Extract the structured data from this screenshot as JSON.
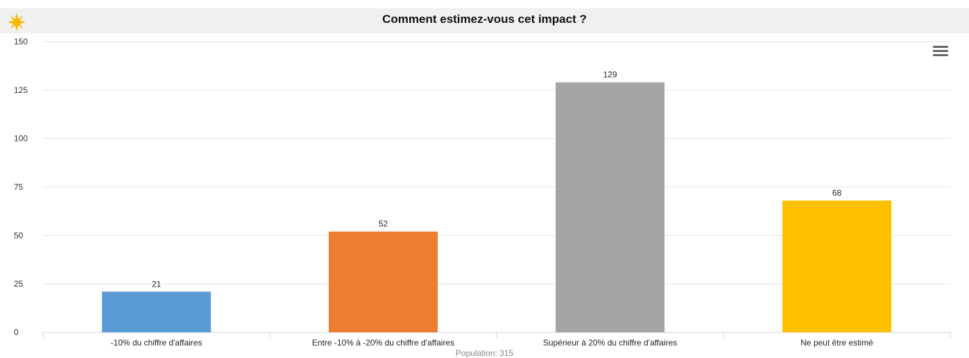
{
  "title": "Comment estimez-vous cet impact ?",
  "footer": "Population: 315",
  "icons": {
    "logo": "sun-logo-icon",
    "menu": "hamburger-menu-icon"
  },
  "chart_data": {
    "type": "bar",
    "title": "Comment estimez-vous cet impact ?",
    "categories": [
      "-10% du chiffre d'affaires",
      "Entre -10% à -20% du chiffre d'affaires",
      "Supérieur à 20% du chiffre d'affaires",
      "Ne peut être estimé"
    ],
    "values": [
      21,
      52,
      129,
      68
    ],
    "colors": [
      "#5b9bd5",
      "#ed7d31",
      "#a5a5a5",
      "#ffc000"
    ],
    "ylim": [
      0,
      150
    ],
    "yticks": [
      0,
      25,
      50,
      75,
      100,
      125,
      150
    ],
    "xlabel": "",
    "ylabel": "",
    "grid": true,
    "data_labels": true
  }
}
